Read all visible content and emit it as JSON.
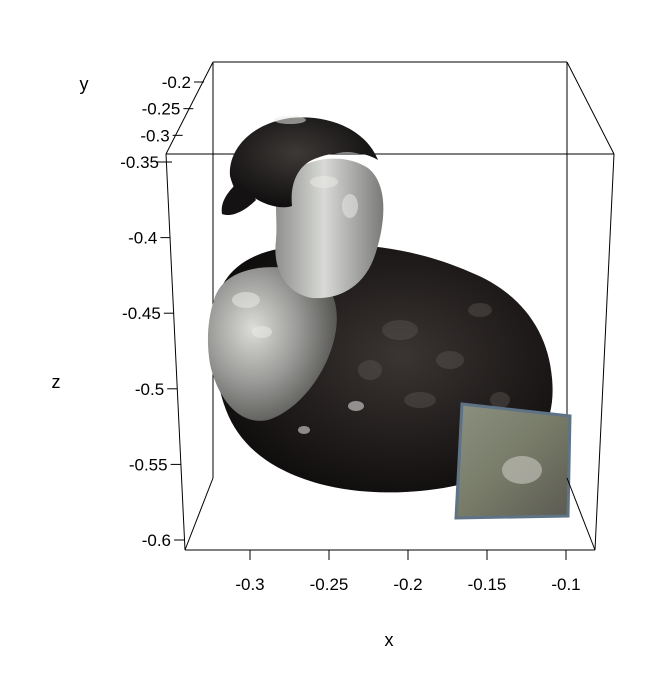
{
  "chart_data": {
    "type": "scatter",
    "subtype": "3d-surface-render",
    "title": "",
    "subject": "textured 3D scan of a duck model standing on a small cube",
    "axes": {
      "x": {
        "label": "x",
        "ticks": [
          -0.3,
          -0.25,
          -0.2,
          -0.15,
          -0.1
        ],
        "tick_labels": [
          "-0.3",
          "-0.25",
          "-0.2",
          "-0.15",
          "-0.1"
        ],
        "range": [
          -0.33,
          -0.09
        ]
      },
      "y": {
        "label": "y",
        "ticks": [
          -0.2,
          -0.25,
          -0.3,
          -0.35
        ],
        "tick_labels": [
          "-0.2",
          "-0.25",
          "-0.3",
          "-0.35"
        ],
        "range": [
          -0.35,
          -0.18
        ]
      },
      "z": {
        "label": "z",
        "ticks": [
          -0.35,
          -0.4,
          -0.45,
          -0.5,
          -0.55,
          -0.6
        ],
        "tick_labels": [
          "-0.35",
          "-0.4",
          "-0.45",
          "-0.5",
          "-0.55",
          "-0.6"
        ],
        "range": [
          -0.61,
          -0.35
        ]
      }
    },
    "box": true,
    "grid": false,
    "legend": "none",
    "colors": {
      "body_dark": "#1d1a19",
      "neck_light": "#b9bbb8",
      "cube_face": "#7d8370",
      "cube_edge": "#5e7386",
      "box_line": "#000000"
    }
  }
}
